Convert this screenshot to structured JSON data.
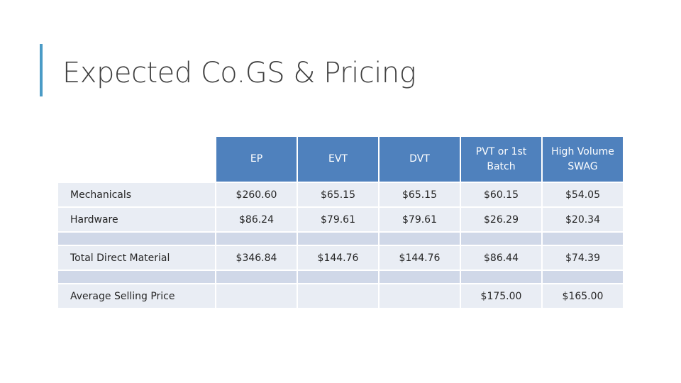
{
  "slide": {
    "title": "Expected Co.GS & Pricing"
  },
  "table": {
    "columns": [
      "EP",
      "EVT",
      "DVT",
      "PVT or 1st Batch",
      "High Volume SWAG"
    ],
    "rows": [
      {
        "label": "Mechanicals",
        "values": [
          "$260.60",
          "$65.15",
          "$65.15",
          "$60.15",
          "$54.05"
        ]
      },
      {
        "label": "Hardware",
        "values": [
          "$86.24",
          "$79.61",
          "$79.61",
          "$26.29",
          "$20.34"
        ]
      },
      {
        "label": "Total Direct Material",
        "values": [
          "$346.84",
          "$144.76",
          "$144.76",
          "$86.44",
          "$74.39"
        ]
      },
      {
        "label": "Average Selling Price",
        "values": [
          "",
          "",
          "",
          "$175.00",
          "$165.00"
        ]
      }
    ]
  },
  "colors": {
    "header_fill": "#4f81bd",
    "row_fill_light": "#e9edf4",
    "row_fill_spacer": "#d0d8e8",
    "accent_bar": "#4a9bc6"
  }
}
